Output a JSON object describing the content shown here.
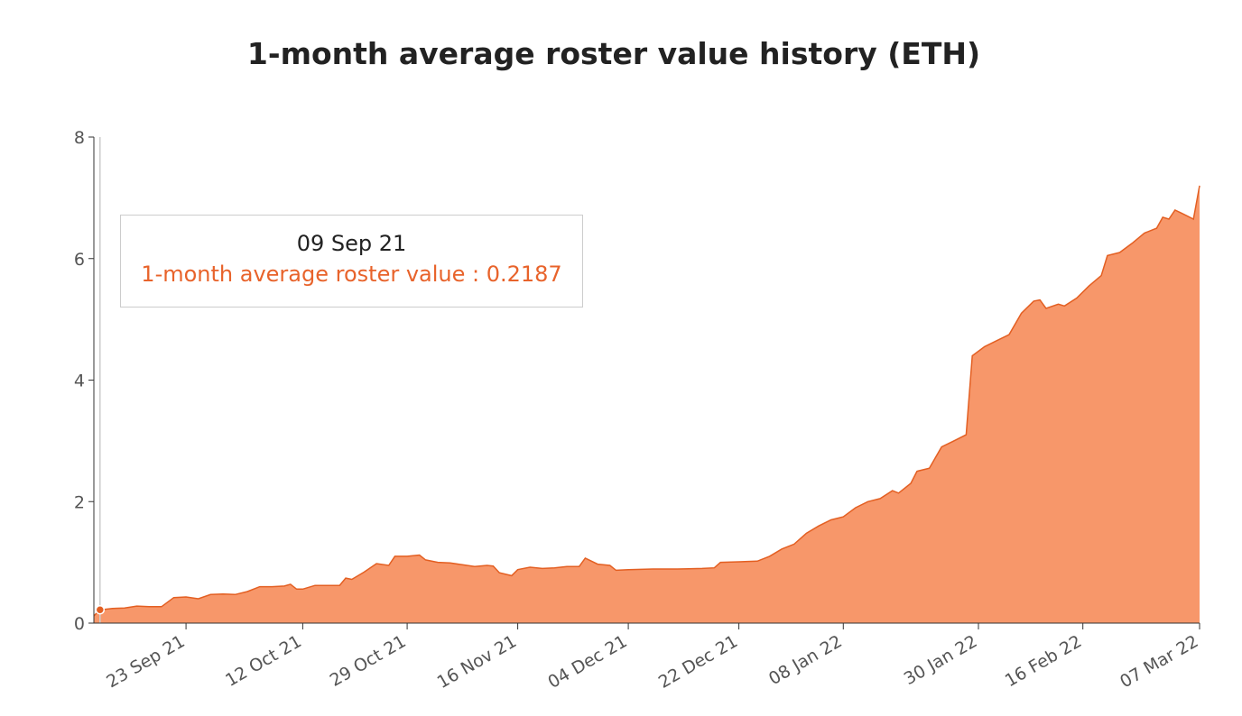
{
  "colors": {
    "area_fill": "#f7976a",
    "area_stroke": "#e35f22",
    "axis": "#333333",
    "cursor": "#cccccc",
    "marker": "#e35f22"
  },
  "tooltip": {
    "date": "09 Sep 21",
    "series_label": "1-month average roster value",
    "value": "0.2187",
    "text": "1-month average roster value : 0.2187"
  },
  "chart_data": {
    "type": "area",
    "title": "1-month average roster value history (ETH)",
    "xlabel": "",
    "ylabel": "",
    "ylim": [
      0,
      8
    ],
    "yticks": [
      0,
      2,
      4,
      6,
      8
    ],
    "xlim": [
      "2021-09-08",
      "2022-03-07"
    ],
    "xticks": [
      {
        "date": "2021-09-23",
        "label": "23 Sep 21"
      },
      {
        "date": "2021-10-12",
        "label": "12 Oct 21"
      },
      {
        "date": "2021-10-29",
        "label": "29 Oct 21"
      },
      {
        "date": "2021-11-16",
        "label": "16 Nov 21"
      },
      {
        "date": "2021-12-04",
        "label": "04 Dec 21"
      },
      {
        "date": "2021-12-22",
        "label": "22 Dec 21"
      },
      {
        "date": "2022-01-08",
        "label": "08 Jan 22"
      },
      {
        "date": "2022-01-30",
        "label": "30 Jan 22"
      },
      {
        "date": "2022-02-16",
        "label": "16 Feb 22"
      },
      {
        "date": "2022-03-07",
        "label": "07 Mar 22"
      }
    ],
    "grid": false,
    "legend": "none",
    "series": [
      {
        "values": [
          [
            "2021-09-08",
            0.12
          ],
          [
            "2021-09-09",
            0.2187
          ],
          [
            "2021-09-11",
            0.24
          ],
          [
            "2021-09-13",
            0.25
          ],
          [
            "2021-09-15",
            0.28
          ],
          [
            "2021-09-17",
            0.27
          ],
          [
            "2021-09-19",
            0.27
          ],
          [
            "2021-09-21",
            0.42
          ],
          [
            "2021-09-23",
            0.43
          ],
          [
            "2021-09-25",
            0.4
          ],
          [
            "2021-09-27",
            0.47
          ],
          [
            "2021-09-29",
            0.48
          ],
          [
            "2021-10-01",
            0.47
          ],
          [
            "2021-10-03",
            0.52
          ],
          [
            "2021-10-05",
            0.6
          ],
          [
            "2021-10-07",
            0.6
          ],
          [
            "2021-10-09",
            0.61
          ],
          [
            "2021-10-10",
            0.64
          ],
          [
            "2021-10-11",
            0.56
          ],
          [
            "2021-10-12",
            0.56
          ],
          [
            "2021-10-14",
            0.62
          ],
          [
            "2021-10-16",
            0.62
          ],
          [
            "2021-10-18",
            0.62
          ],
          [
            "2021-10-19",
            0.74
          ],
          [
            "2021-10-20",
            0.72
          ],
          [
            "2021-10-22",
            0.84
          ],
          [
            "2021-10-24",
            0.98
          ],
          [
            "2021-10-26",
            0.95
          ],
          [
            "2021-10-27",
            1.1
          ],
          [
            "2021-10-29",
            1.1
          ],
          [
            "2021-10-31",
            1.12
          ],
          [
            "2021-11-01",
            1.04
          ],
          [
            "2021-11-03",
            1.0
          ],
          [
            "2021-11-05",
            0.99
          ],
          [
            "2021-11-07",
            0.96
          ],
          [
            "2021-11-09",
            0.93
          ],
          [
            "2021-11-11",
            0.95
          ],
          [
            "2021-11-12",
            0.94
          ],
          [
            "2021-11-13",
            0.83
          ],
          [
            "2021-11-15",
            0.78
          ],
          [
            "2021-11-16",
            0.88
          ],
          [
            "2021-11-18",
            0.92
          ],
          [
            "2021-11-20",
            0.9
          ],
          [
            "2021-11-22",
            0.91
          ],
          [
            "2021-11-24",
            0.93
          ],
          [
            "2021-11-26",
            0.93
          ],
          [
            "2021-11-27",
            1.07
          ],
          [
            "2021-11-29",
            0.97
          ],
          [
            "2021-12-01",
            0.95
          ],
          [
            "2021-12-02",
            0.87
          ],
          [
            "2021-12-04",
            0.88
          ],
          [
            "2021-12-08",
            0.89
          ],
          [
            "2021-12-12",
            0.89
          ],
          [
            "2021-12-16",
            0.9
          ],
          [
            "2021-12-18",
            0.91
          ],
          [
            "2021-12-19",
            1.0
          ],
          [
            "2021-12-22",
            1.01
          ],
          [
            "2021-12-25",
            1.02
          ],
          [
            "2021-12-27",
            1.1
          ],
          [
            "2021-12-29",
            1.22
          ],
          [
            "2021-12-31",
            1.3
          ],
          [
            "2022-01-02",
            1.48
          ],
          [
            "2022-01-04",
            1.6
          ],
          [
            "2022-01-06",
            1.7
          ],
          [
            "2022-01-08",
            1.75
          ],
          [
            "2022-01-10",
            1.9
          ],
          [
            "2022-01-12",
            2.0
          ],
          [
            "2022-01-14",
            2.05
          ],
          [
            "2022-01-16",
            2.18
          ],
          [
            "2022-01-17",
            2.14
          ],
          [
            "2022-01-19",
            2.3
          ],
          [
            "2022-01-20",
            2.5
          ],
          [
            "2022-01-22",
            2.55
          ],
          [
            "2022-01-24",
            2.9
          ],
          [
            "2022-01-26",
            3.0
          ],
          [
            "2022-01-28",
            3.1
          ],
          [
            "2022-01-29",
            4.4
          ],
          [
            "2022-01-31",
            4.55
          ],
          [
            "2022-02-02",
            4.65
          ],
          [
            "2022-02-04",
            4.75
          ],
          [
            "2022-02-06",
            5.1
          ],
          [
            "2022-02-08",
            5.3
          ],
          [
            "2022-02-09",
            5.32
          ],
          [
            "2022-02-10",
            5.18
          ],
          [
            "2022-02-12",
            5.25
          ],
          [
            "2022-02-13",
            5.22
          ],
          [
            "2022-02-15",
            5.35
          ],
          [
            "2022-02-17",
            5.55
          ],
          [
            "2022-02-19",
            5.72
          ],
          [
            "2022-02-20",
            6.05
          ],
          [
            "2022-02-22",
            6.1
          ],
          [
            "2022-02-24",
            6.25
          ],
          [
            "2022-02-26",
            6.42
          ],
          [
            "2022-02-28",
            6.5
          ],
          [
            "2022-03-01",
            6.68
          ],
          [
            "2022-03-02",
            6.65
          ],
          [
            "2022-03-03",
            6.8
          ],
          [
            "2022-03-04",
            6.75
          ],
          [
            "2022-03-05",
            6.7
          ],
          [
            "2022-03-06",
            6.65
          ],
          [
            "2022-03-07",
            7.2
          ]
        ]
      }
    ]
  }
}
